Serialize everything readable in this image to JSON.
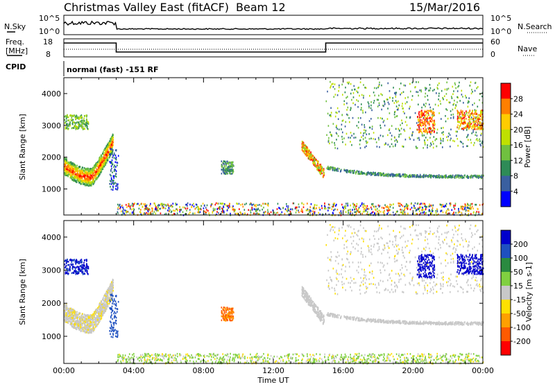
{
  "header": {
    "title": "Christmas Valley East (fitACF)",
    "beam": "Beam 12",
    "date": "15/Mar/2016"
  },
  "top_panels": {
    "nsky_label": "N.Sky",
    "nsearch_label": "N.Search",
    "nsky_ticks": [
      "10^5",
      "10^0"
    ],
    "freq_label_line1": "Freq.",
    "freq_label_line2": "[MHz]",
    "freq_ticks": [
      "18",
      "8"
    ],
    "nave_label": "Nave",
    "nave_ticks": [
      "60",
      "0"
    ],
    "cpid_label": "CPID",
    "cpid_text": "normal (fast) -151 RF"
  },
  "chart_data": [
    {
      "type": "heatmap",
      "name": "power",
      "ylabel": "Slant Range [km]",
      "colorbar_label": "Power [dB]",
      "colorbar_ticks": [
        "28",
        "24",
        "20",
        "16",
        "12",
        "8",
        "4"
      ],
      "colorbar_colors": [
        "#ff0000",
        "#ff7f00",
        "#ffcc00",
        "#bfe000",
        "#70c040",
        "#2e8b57",
        "#3a5fa0",
        "#0000ff"
      ],
      "ylim": [
        180,
        4500
      ],
      "yticks": [
        "4000",
        "3000",
        "2000",
        "1000"
      ],
      "xlim": [
        0,
        24
      ],
      "xticks": [
        "00:00",
        "04:00",
        "08:00",
        "12:00",
        "16:00",
        "20:00",
        "00:00"
      ]
    },
    {
      "type": "heatmap",
      "name": "velocity",
      "ylabel": "Slant Range [km]",
      "xlabel": "Time UT",
      "colorbar_label": "Velocity [m s-1]",
      "colorbar_ticks": [
        "200",
        "100",
        "50",
        "15",
        "-15",
        "-50",
        "-100",
        "-200"
      ],
      "colorbar_colors": [
        "#0000cc",
        "#1e50c0",
        "#2a8a40",
        "#80d040",
        "#c8c8c8",
        "#ffe000",
        "#ffa000",
        "#ff5a00",
        "#ff0000"
      ],
      "ylim": [
        180,
        4500
      ],
      "yticks": [
        "4000",
        "3000",
        "2000",
        "1000"
      ],
      "xlim": [
        0,
        24
      ],
      "xticks": [
        "00:00",
        "04:00",
        "08:00",
        "12:00",
        "16:00",
        "20:00",
        "00:00"
      ]
    }
  ]
}
